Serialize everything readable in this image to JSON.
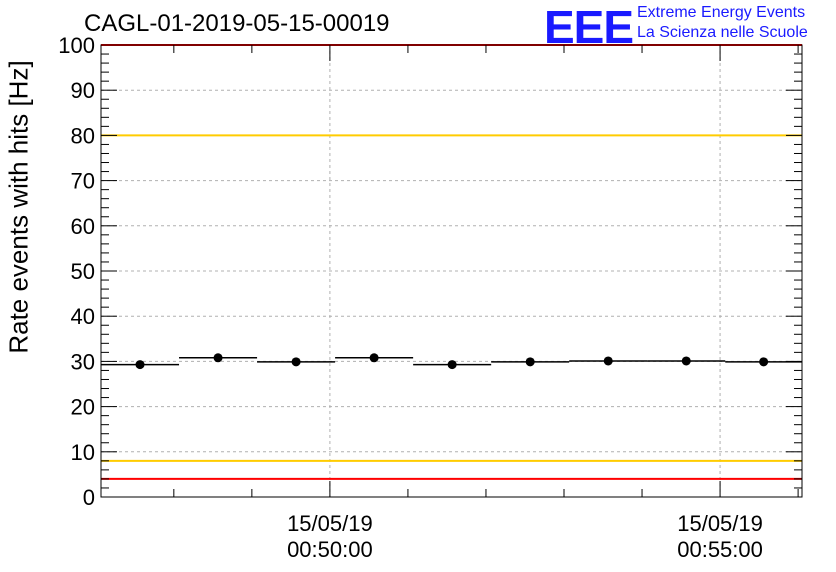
{
  "chart_data": {
    "type": "scatter",
    "title": "CAGL-01-2019-05-15-00019",
    "ylabel": "Rate events with hits [Hz]",
    "xlabel": "",
    "ylim": [
      0,
      100
    ],
    "yticks": [
      0,
      10,
      20,
      30,
      40,
      50,
      60,
      70,
      80,
      90,
      100
    ],
    "x_tick_labels": [
      {
        "date": "15/05/19",
        "time": "00:50:00"
      },
      {
        "date": "15/05/19",
        "time": "00:55:00"
      }
    ],
    "xlim": [
      "00:47:04",
      "00:56:03"
    ],
    "grid": true,
    "reference_lines": [
      {
        "y": 100,
        "color": "#ff0000"
      },
      {
        "y": 80,
        "color": "#ffcc00"
      },
      {
        "y": 8,
        "color": "#ffcc00"
      },
      {
        "y": 4,
        "color": "#ff0000"
      }
    ],
    "points": [
      {
        "x_start": "00:47:04",
        "x_end": "00:48:04",
        "y": 29.3
      },
      {
        "x_start": "00:48:04",
        "x_end": "00:49:04",
        "y": 30.8
      },
      {
        "x_start": "00:49:04",
        "x_end": "00:50:04",
        "y": 29.9
      },
      {
        "x_start": "00:50:04",
        "x_end": "00:51:04",
        "y": 30.8
      },
      {
        "x_start": "00:51:04",
        "x_end": "00:52:04",
        "y": 29.3
      },
      {
        "x_start": "00:52:04",
        "x_end": "00:53:04",
        "y": 29.9
      },
      {
        "x_start": "00:53:04",
        "x_end": "00:54:04",
        "y": 30.1
      },
      {
        "x_start": "00:54:04",
        "x_end": "00:55:04",
        "y": 30.1
      },
      {
        "x_start": "00:55:04",
        "x_end": "00:56:03",
        "y": 29.9
      }
    ]
  },
  "logo": {
    "mark": "EEE",
    "line1": "Extreme Energy Events",
    "line2": "La Scienza nelle Scuole",
    "color": "#1a1aff"
  }
}
